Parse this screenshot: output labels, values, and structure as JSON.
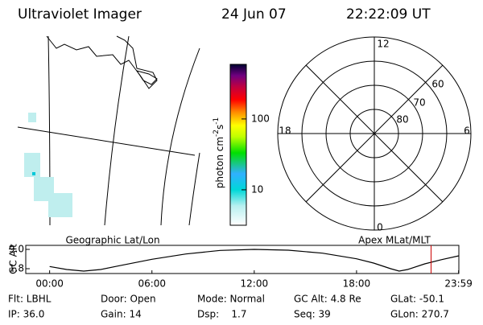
{
  "header": {
    "title": "Ultraviolet Imager",
    "date": "24 Jun 07",
    "time": "22:22:09 UT"
  },
  "colorbar": {
    "label": [
      "photon cm",
      "-2",
      "s",
      "-1"
    ],
    "lim": [
      3.16,
      590
    ],
    "ticks": [
      10,
      100
    ],
    "log": true
  },
  "polar": {
    "hour_labels": [
      "12",
      "18",
      "6",
      "0"
    ],
    "lat_labels": [
      "60",
      "70",
      "80"
    ]
  },
  "chart_data": {
    "type": "line",
    "ylabel": "GC Alt",
    "left_title": "Geographic Lat/Lon",
    "right_title": "Apex MLat/MLT",
    "x": [
      0,
      1,
      2,
      3,
      4,
      6,
      8,
      10,
      12,
      14,
      16,
      18,
      19,
      20,
      20.5,
      21,
      22,
      23,
      24
    ],
    "values": [
      2.6,
      1.5,
      0.9,
      1.5,
      2.8,
      5.3,
      7.3,
      8.6,
      9.0,
      8.7,
      7.6,
      5.5,
      3.9,
      1.8,
      0.9,
      1.5,
      3.6,
      5.2,
      6.6
    ],
    "color": "#000000",
    "marker_x": 22.37,
    "marker_color": "#cc0000",
    "xlim": [
      -1.4,
      24
    ],
    "ylim": [
      0,
      10.5
    ],
    "xticks": [
      {
        "value": 0,
        "label": "00:00"
      },
      {
        "value": 6,
        "label": "06:00"
      },
      {
        "value": 12,
        "label": "12:00"
      },
      {
        "value": 18,
        "label": "18:00"
      },
      {
        "value": 23.983,
        "label": "23:59"
      }
    ],
    "yticks": [
      1.8,
      {
        "value": 9,
        "label": "9.0"
      }
    ]
  },
  "footer": {
    "rows": [
      [
        "Flt: LBHL",
        "Door: Open",
        "Mode: Normal",
        "GC Alt: 4.8 Re",
        "GLat: -50.1"
      ],
      [
        "IP: 36.0",
        "Gain: 14",
        "Dsp:    1.7",
        "Seq: 39",
        "GLon: 270.7"
      ]
    ]
  }
}
